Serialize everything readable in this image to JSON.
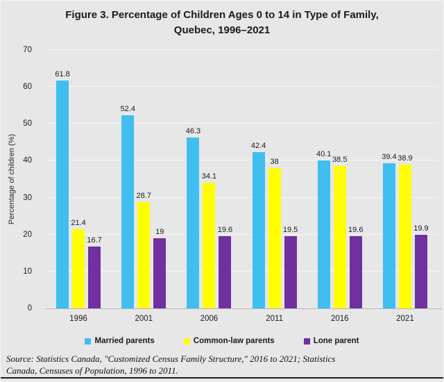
{
  "figure": {
    "title_line1": "Figure 3. Percentage of Children Ages 0 to 14 in Type of Family,",
    "title_line2": "Quebec, 1996–2021"
  },
  "chart_data": {
    "type": "bar",
    "title": "Figure 3. Percentage of Children Ages 0 to 14 in Type of Family, Quebec, 1996–2021",
    "categories": [
      "1996",
      "2001",
      "2006",
      "2011",
      "2016",
      "2021"
    ],
    "series": [
      {
        "name": "Married parents",
        "color": "#3FBEEF",
        "values": [
          61.8,
          52.4,
          46.3,
          42.4,
          40.1,
          39.4
        ]
      },
      {
        "name": "Common-law parents",
        "color": "#FFFF00",
        "values": [
          21.4,
          28.7,
          34.1,
          38,
          38.5,
          38.9
        ]
      },
      {
        "name": "Lone parent",
        "color": "#7030A0",
        "values": [
          16.7,
          19,
          19.6,
          19.5,
          19.6,
          19.9
        ]
      }
    ],
    "xlabel": "",
    "ylabel": "Percentage of children (%)",
    "ylim": [
      0,
      70
    ],
    "yticks": [
      0,
      10,
      20,
      30,
      40,
      50,
      60,
      70
    ],
    "grid": true,
    "legend_position": "bottom",
    "data_labels": true
  },
  "source": {
    "line1": "Source: Statistics Canada, \"Customized Census Family Structure,\" 2016 to 2021; Statistics",
    "line2": "Canada, Censuses of Population, 1996 to 2011."
  }
}
